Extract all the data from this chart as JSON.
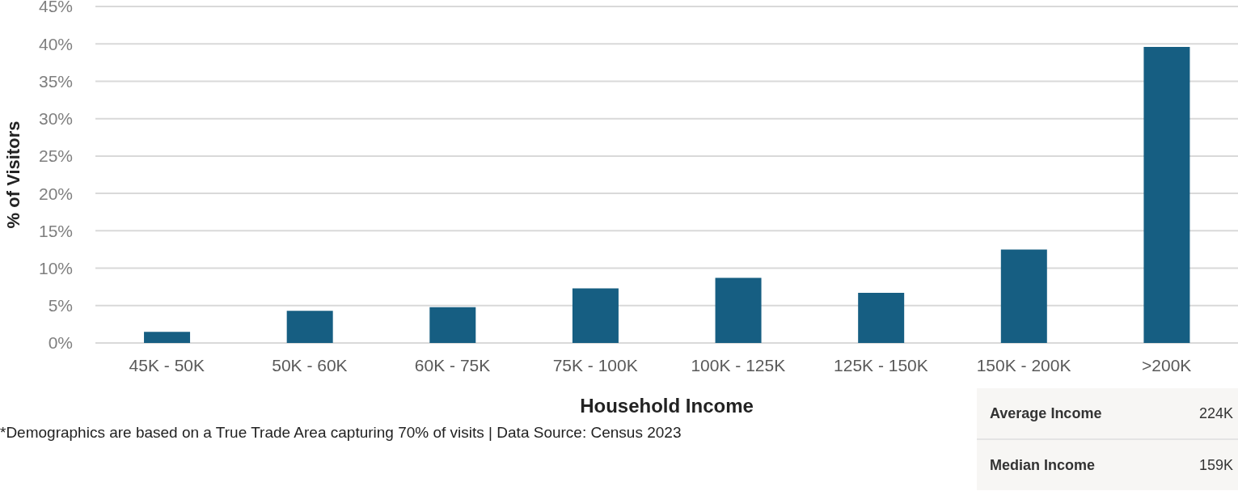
{
  "chart_data": {
    "type": "bar",
    "xlabel": "Household Income",
    "ylabel": "% of Visitors",
    "categories": [
      "45K - 50K",
      "50K - 60K",
      "60K - 75K",
      "75K - 100K",
      "100K - 125K",
      "125K - 150K",
      "150K - 200K",
      ">200K"
    ],
    "values": [
      1.5,
      4.3,
      4.8,
      7.3,
      8.7,
      6.7,
      12.5,
      39.6
    ],
    "color": "#165e82",
    "ylim": [
      0,
      45
    ],
    "yticks": [
      {
        "value": 0,
        "label": "0%"
      },
      {
        "value": 5,
        "label": "5%"
      },
      {
        "value": 10,
        "label": "10%"
      },
      {
        "value": 15,
        "label": "15%"
      },
      {
        "value": 20,
        "label": "20%"
      },
      {
        "value": 25,
        "label": "25%"
      },
      {
        "value": 30,
        "label": "30%"
      },
      {
        "value": 35,
        "label": "35%"
      },
      {
        "value": 40,
        "label": "40%"
      },
      {
        "value": 45,
        "label": "45%"
      }
    ],
    "grid": "y",
    "legend": false,
    "annotations": [
      "*Demographics are based on a True Trade Area capturing 70% of visits | Data Source: Census 2023",
      "Average Income",
      "224K",
      "Median Income",
      "159K"
    ]
  }
}
